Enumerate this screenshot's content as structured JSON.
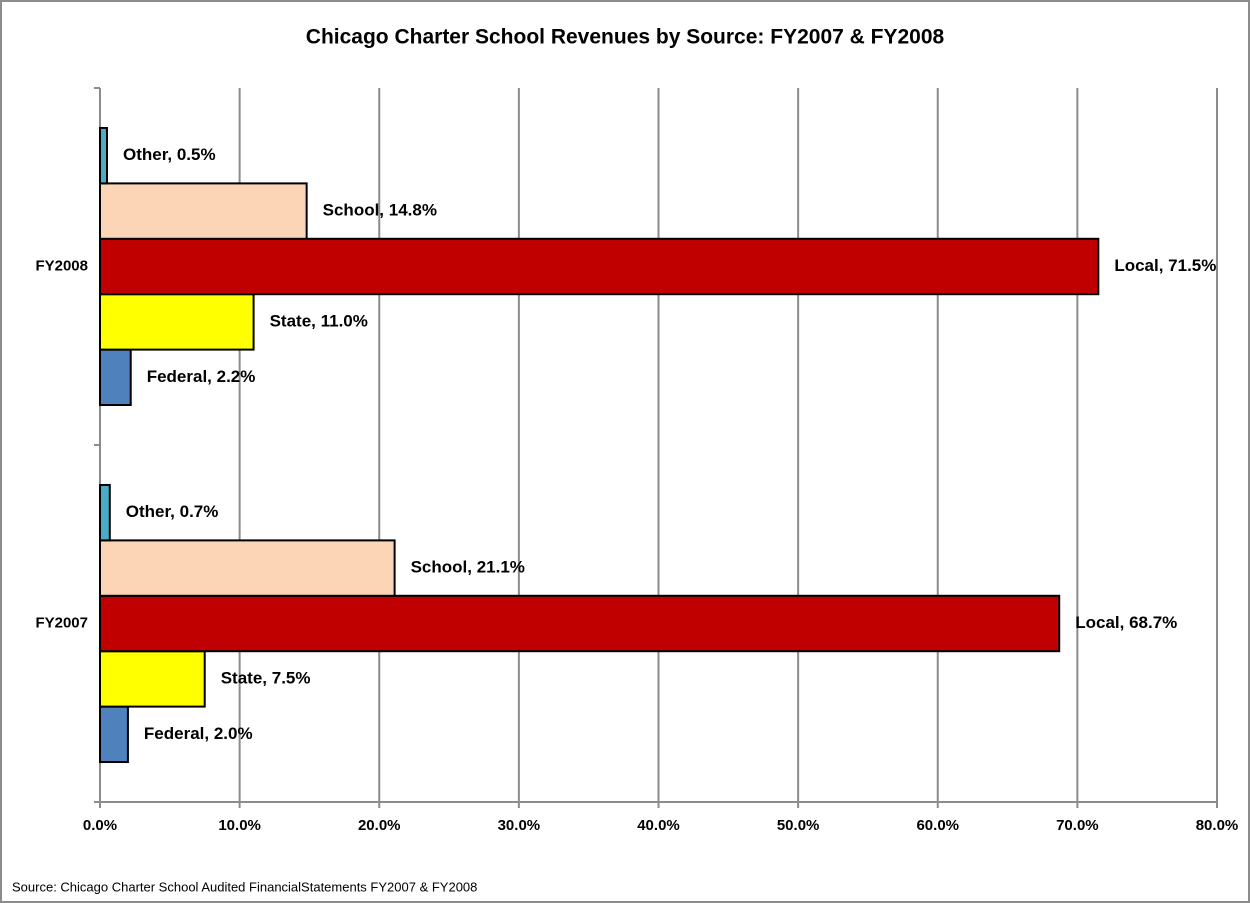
{
  "chart_data": {
    "type": "hbar",
    "title": "Chicago Charter School Revenues by Source: FY2007 & FY2008",
    "note": "Source: Chicago Charter School Audited FinancialStatements FY2007 & FY2008",
    "categories": [
      "FY2007",
      "FY2008"
    ],
    "series": [
      {
        "name": "Federal",
        "color": "#4f81bd",
        "values": [
          2.0,
          2.2
        ],
        "value_labels": [
          "Federal, 2.0%",
          "Federal, 2.2%"
        ]
      },
      {
        "name": "State",
        "color": "#ffff00",
        "values": [
          7.5,
          11.0
        ],
        "value_labels": [
          "State, 7.5%",
          "State, 11.0%"
        ]
      },
      {
        "name": "Local",
        "color": "#c00000",
        "values": [
          68.7,
          71.5
        ],
        "value_labels": [
          "Local, 68.7%",
          "Local, 71.5%"
        ]
      },
      {
        "name": "School",
        "color": "#fbd5b5",
        "values": [
          21.1,
          14.8
        ],
        "value_labels": [
          "School, 21.1%",
          "School, 14.8%"
        ]
      },
      {
        "name": "Other",
        "color": "#4bacc6",
        "values": [
          0.7,
          0.5
        ],
        "value_labels": [
          "Other, 0.7%",
          "Other, 0.5%"
        ]
      }
    ],
    "xlim": [
      0,
      80
    ],
    "xticks": [
      {
        "value": 0,
        "label": "0.0%"
      },
      {
        "value": 10,
        "label": "10.0%"
      },
      {
        "value": 20,
        "label": "20.0%"
      },
      {
        "value": 30,
        "label": "30.0%"
      },
      {
        "value": 40,
        "label": "40.0%"
      },
      {
        "value": 50,
        "label": "50.0%"
      },
      {
        "value": 60,
        "label": "60.0%"
      },
      {
        "value": 70,
        "label": "70.0%"
      },
      {
        "value": 80,
        "label": "80.0%"
      }
    ],
    "grid": true
  }
}
